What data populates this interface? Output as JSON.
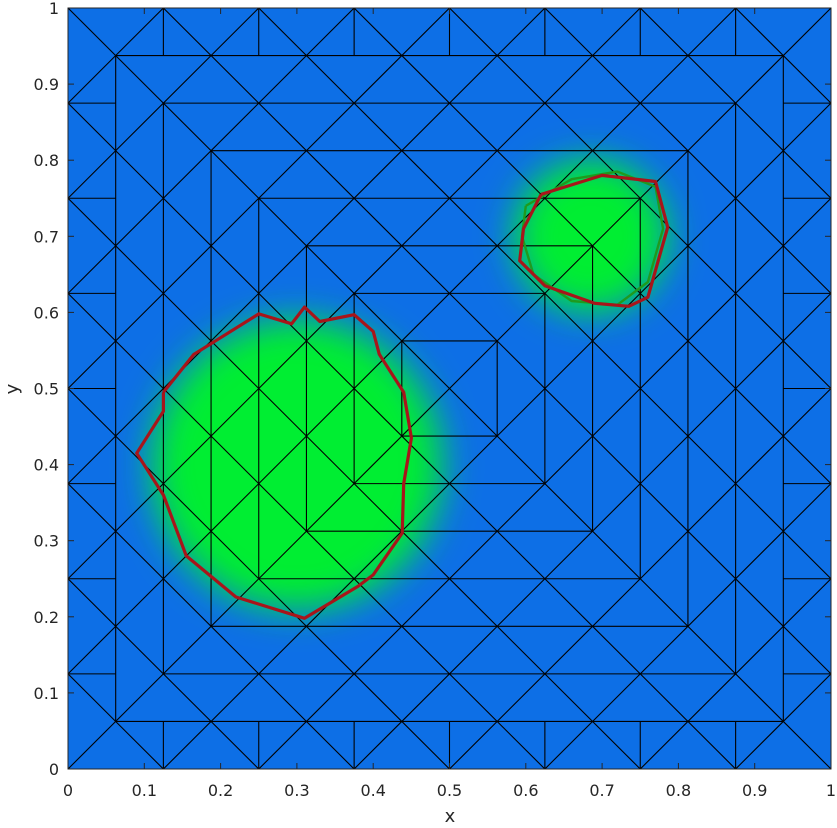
{
  "chart_data": {
    "type": "heatmap",
    "title": "",
    "xlabel": "x",
    "ylabel": "y",
    "xlim": [
      0,
      1
    ],
    "ylim": [
      0,
      1
    ],
    "xticks": [
      "0",
      "0.1",
      "0.2",
      "0.3",
      "0.4",
      "0.5",
      "0.6",
      "0.7",
      "0.8",
      "0.9",
      "1"
    ],
    "yticks": [
      "0",
      "0.1",
      "0.2",
      "0.3",
      "0.4",
      "0.5",
      "0.6",
      "0.7",
      "0.8",
      "0.9",
      "1"
    ],
    "colors": {
      "background": "#0d6fe6",
      "field_high": "#00ee33",
      "mesh": "#000000",
      "contour_red": "#a8151a",
      "contour_green": "#1f9a1f"
    },
    "field_blobs": [
      {
        "cx": 0.3,
        "cy": 0.4,
        "r": 0.19
      },
      {
        "cx": 0.685,
        "cy": 0.7,
        "r": 0.1
      }
    ],
    "mesh": {
      "nested_square_levels": [
        0.0625,
        0.125,
        0.1875,
        0.25,
        0.3125,
        0.375,
        0.4375
      ],
      "diagonal_spacing": 0.125
    },
    "contours": [
      {
        "name": "",
        "color": "#a8151a",
        "points": [
          [
            0.125,
            0.495
          ],
          [
            0.165,
            0.545
          ],
          [
            0.25,
            0.598
          ],
          [
            0.293,
            0.585
          ],
          [
            0.31,
            0.607
          ],
          [
            0.33,
            0.588
          ],
          [
            0.375,
            0.597
          ],
          [
            0.4,
            0.575
          ],
          [
            0.408,
            0.545
          ],
          [
            0.44,
            0.495
          ],
          [
            0.45,
            0.435
          ],
          [
            0.44,
            0.375
          ],
          [
            0.438,
            0.31
          ],
          [
            0.4,
            0.255
          ],
          [
            0.38,
            0.24
          ],
          [
            0.31,
            0.198
          ],
          [
            0.22,
            0.226
          ],
          [
            0.155,
            0.28
          ],
          [
            0.125,
            0.36
          ],
          [
            0.09,
            0.415
          ],
          [
            0.125,
            0.47
          ],
          [
            0.125,
            0.495
          ]
        ]
      },
      {
        "name": "",
        "color": "#a8151a",
        "points": [
          [
            0.62,
            0.755
          ],
          [
            0.7,
            0.78
          ],
          [
            0.77,
            0.772
          ],
          [
            0.786,
            0.712
          ],
          [
            0.76,
            0.62
          ],
          [
            0.735,
            0.608
          ],
          [
            0.69,
            0.612
          ],
          [
            0.625,
            0.635
          ],
          [
            0.592,
            0.668
          ],
          [
            0.597,
            0.71
          ],
          [
            0.62,
            0.755
          ]
        ]
      },
      {
        "name": "",
        "color": "#1f9a1f",
        "points": [
          [
            0.6,
            0.74
          ],
          [
            0.66,
            0.775
          ],
          [
            0.72,
            0.785
          ],
          [
            0.77,
            0.765
          ],
          [
            0.78,
            0.71
          ],
          [
            0.76,
            0.64
          ],
          [
            0.72,
            0.61
          ],
          [
            0.66,
            0.615
          ],
          [
            0.61,
            0.65
          ],
          [
            0.595,
            0.7
          ],
          [
            0.6,
            0.74
          ]
        ]
      }
    ]
  }
}
